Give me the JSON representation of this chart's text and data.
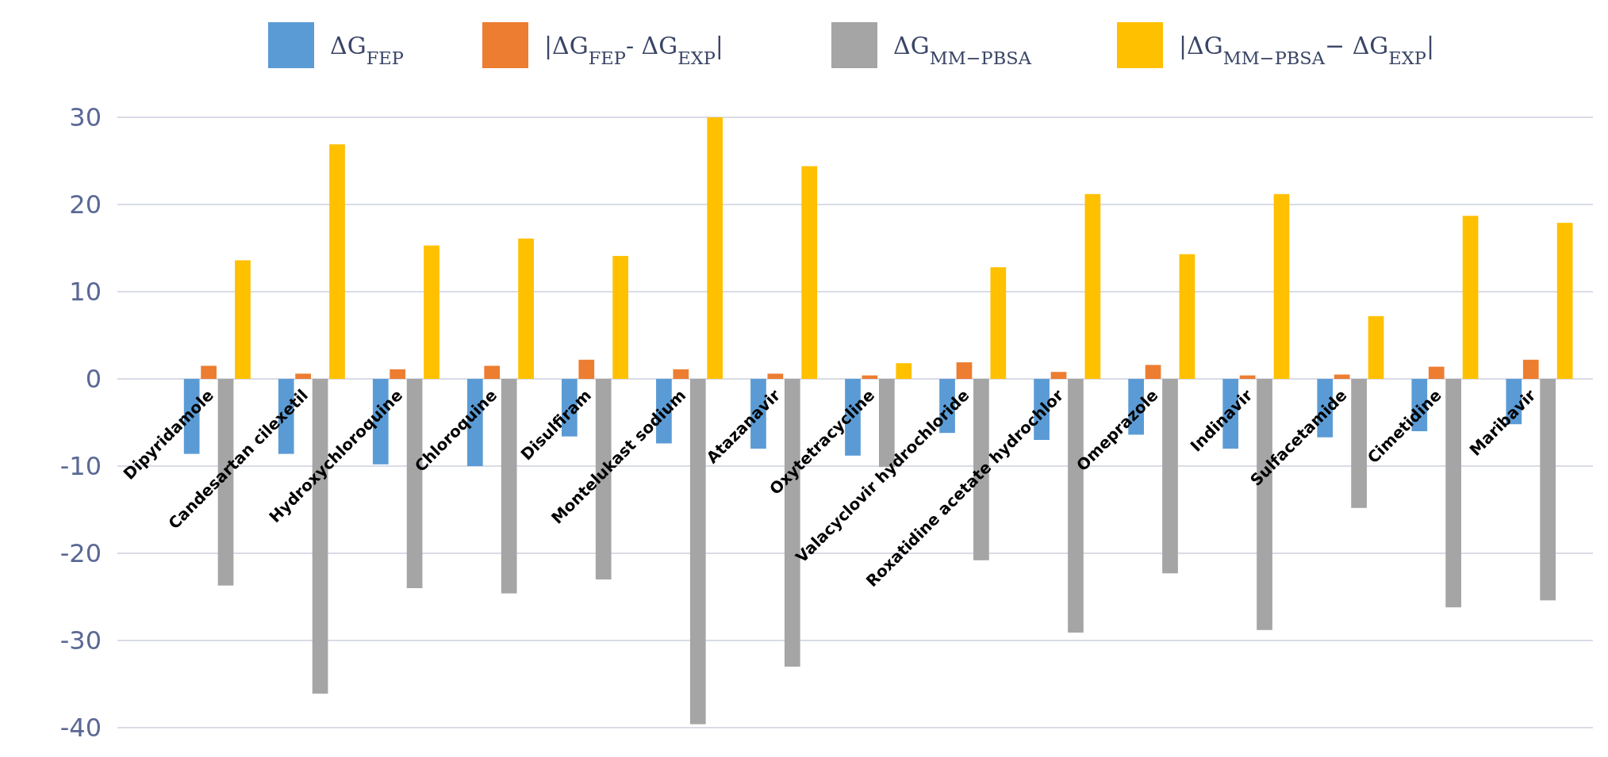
{
  "chart_data": {
    "type": "bar",
    "categories": [
      "Dipyridamole",
      "Candesartan cilexetil",
      "Hydroxychloroquine",
      "Chloroquine",
      "Disulfiram",
      "Montelukast sodium",
      "Atazanavir",
      "Oxytetracycline",
      "Valacyclovir hydrochloride",
      "Roxatidine acetate hydrochlor",
      "Omeprazole",
      "Indinavir",
      "Sulfacetamide",
      "Cimetidine",
      "Maribavir"
    ],
    "series": [
      {
        "name": "ΔG$_{FEP}$",
        "color": "#5b9bd5",
        "values": [
          -8.6,
          -8.6,
          -9.8,
          -10.0,
          -6.6,
          -7.4,
          -8.0,
          -8.8,
          -6.2,
          -7.0,
          -6.4,
          -8.0,
          -6.7,
          -6.0,
          -5.2
        ]
      },
      {
        "name": "|ΔG$_{FEP}$- ΔG$_{EXP}$|",
        "color": "#ed7d31",
        "values": [
          1.5,
          0.6,
          1.1,
          1.5,
          2.2,
          1.1,
          0.6,
          0.4,
          1.9,
          0.8,
          1.6,
          0.4,
          0.5,
          1.4,
          2.2
        ]
      },
      {
        "name": "ΔG$_{MM−PBSA}$",
        "color": "#a5a5a5",
        "values": [
          -23.7,
          -36.1,
          -24.0,
          -24.6,
          -23.0,
          -39.6,
          -33.0,
          -10.1,
          -20.8,
          -29.1,
          -22.3,
          -28.8,
          -14.8,
          -26.2,
          -25.4
        ]
      },
      {
        "name": "|ΔG$_{MM−PBSA}$− ΔG$_{EXP}$|",
        "color": "#ffc000",
        "values": [
          13.6,
          26.9,
          15.3,
          16.1,
          14.1,
          30.0,
          24.4,
          1.8,
          12.8,
          21.2,
          14.3,
          21.2,
          7.2,
          18.7,
          17.9
        ]
      }
    ],
    "ylim": [
      -40,
      30
    ],
    "yticks": [
      -40,
      -30,
      -20,
      -10,
      0,
      10,
      20,
      30
    ],
    "grid": "y",
    "legend": "top"
  }
}
